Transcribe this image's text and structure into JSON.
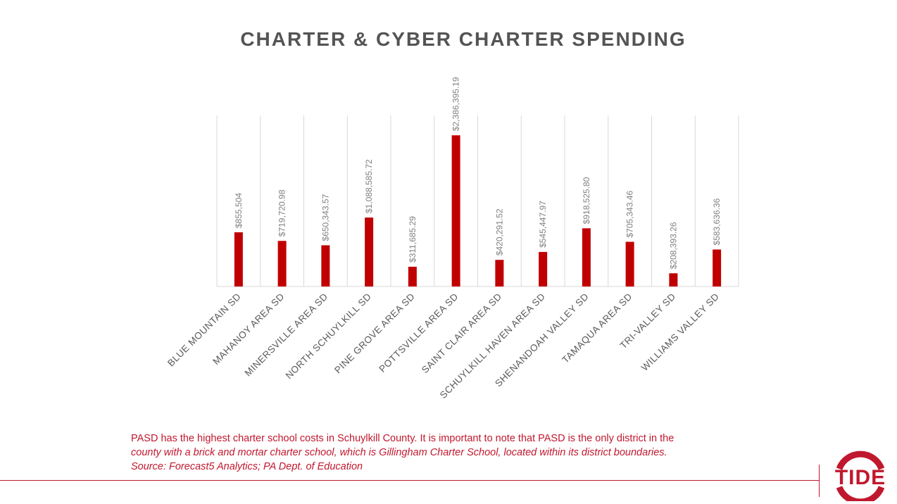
{
  "slide": {
    "title": "CHARTER & CYBER CHARTER SPENDING",
    "note_line1": "PASD has the highest charter school costs in Schuylkill County. It is important to note that PASD is the only district in the",
    "note_line2": "county with a brick and mortar charter school, which is Gillingham Charter School, located within its district boundaries.",
    "note_line3": "Source: Forecast5 Analytics; PA Dept. of Education",
    "logo_text": "TIDE"
  },
  "colors": {
    "bar": "#c00000",
    "accent": "#c0182e",
    "grid": "#d9d9d9",
    "label": "#7f7f7f",
    "category": "#595959"
  },
  "chart_data": {
    "type": "bar",
    "title": "CHARTER & CYBER CHARTER SPENDING",
    "xlabel": "",
    "ylabel": "",
    "ylim": [
      0,
      2700000
    ],
    "grid": "vertical",
    "categories": [
      "BLUE MOUNTAIN SD",
      "MAHANOY AREA SD",
      "MINERSVILLE AREA SD",
      "NORTH SCHUYLKILL SD",
      "PINE GROVE AREA SD",
      "POTTSVILLE AREA SD",
      "SAINT CLAIR AREA SD",
      "SCHUYLKILL HAVEN AREA SD",
      "SHENANDOAH VALLEY SD",
      "TAMAQUA AREA SD",
      "TRI-VALLEY SD",
      "WILLIAMS VALLEY SD"
    ],
    "values": [
      855504,
      719720.98,
      650343.57,
      1088585.72,
      311685.29,
      2386395.19,
      420291.52,
      545447.97,
      918525.8,
      705343.46,
      208393.26,
      583636.36
    ],
    "data_labels": [
      "$855,504",
      "$719,720.98",
      "$650,343.57",
      "$1,088,585.72",
      "$311,685.29",
      "$2,386,395.19",
      "$420,291.52",
      "$545,447.97",
      "$918,525.80",
      "$705,343.46",
      "$208,393.26",
      "$583,636.36"
    ]
  }
}
